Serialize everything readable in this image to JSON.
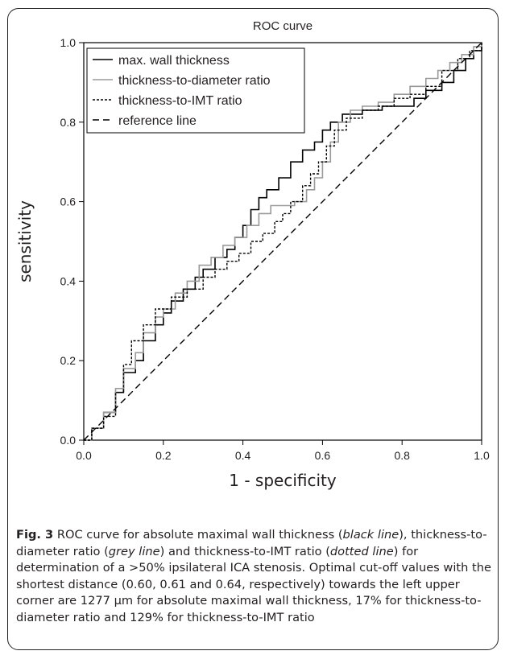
{
  "chart_data": {
    "type": "line",
    "title": "ROC curve",
    "xlabel": "1 - specificity",
    "ylabel": "sensitivity",
    "xlim": [
      0.0,
      1.0
    ],
    "ylim": [
      0.0,
      1.0
    ],
    "xticks": [
      "0.0",
      "0.2",
      "0.4",
      "0.6",
      "0.8",
      "1.0"
    ],
    "yticks": [
      "0.0",
      "0.2",
      "0.4",
      "0.6",
      "0.8",
      "1.0"
    ],
    "grid": false,
    "legend_position": "top-left",
    "series": [
      {
        "name": "max. wall thickness",
        "color": "#000000",
        "style": "solid",
        "points": [
          [
            0,
            0
          ],
          [
            0.02,
            0.03
          ],
          [
            0.05,
            0.07
          ],
          [
            0.08,
            0.12
          ],
          [
            0.1,
            0.17
          ],
          [
            0.13,
            0.2
          ],
          [
            0.15,
            0.25
          ],
          [
            0.18,
            0.29
          ],
          [
            0.2,
            0.32
          ],
          [
            0.22,
            0.35
          ],
          [
            0.25,
            0.38
          ],
          [
            0.28,
            0.41
          ],
          [
            0.3,
            0.43
          ],
          [
            0.33,
            0.46
          ],
          [
            0.36,
            0.48
          ],
          [
            0.38,
            0.51
          ],
          [
            0.4,
            0.54
          ],
          [
            0.42,
            0.58
          ],
          [
            0.44,
            0.61
          ],
          [
            0.46,
            0.63
          ],
          [
            0.49,
            0.66
          ],
          [
            0.52,
            0.7
          ],
          [
            0.55,
            0.73
          ],
          [
            0.58,
            0.75
          ],
          [
            0.6,
            0.78
          ],
          [
            0.62,
            0.8
          ],
          [
            0.65,
            0.82
          ],
          [
            0.7,
            0.83
          ],
          [
            0.75,
            0.84
          ],
          [
            0.8,
            0.84
          ],
          [
            0.83,
            0.86
          ],
          [
            0.86,
            0.88
          ],
          [
            0.9,
            0.9
          ],
          [
            0.93,
            0.93
          ],
          [
            0.96,
            0.96
          ],
          [
            0.98,
            0.98
          ],
          [
            1,
            1
          ]
        ]
      },
      {
        "name": "thickness-to-diameter ratio",
        "color": "#9a9a9a",
        "style": "solid",
        "points": [
          [
            0,
            0
          ],
          [
            0.02,
            0.03
          ],
          [
            0.05,
            0.07
          ],
          [
            0.08,
            0.13
          ],
          [
            0.1,
            0.18
          ],
          [
            0.13,
            0.22
          ],
          [
            0.15,
            0.27
          ],
          [
            0.18,
            0.31
          ],
          [
            0.2,
            0.33
          ],
          [
            0.23,
            0.37
          ],
          [
            0.26,
            0.4
          ],
          [
            0.29,
            0.44
          ],
          [
            0.32,
            0.46
          ],
          [
            0.35,
            0.49
          ],
          [
            0.38,
            0.51
          ],
          [
            0.41,
            0.54
          ],
          [
            0.44,
            0.57
          ],
          [
            0.47,
            0.59
          ],
          [
            0.5,
            0.59
          ],
          [
            0.53,
            0.6
          ],
          [
            0.56,
            0.63
          ],
          [
            0.58,
            0.66
          ],
          [
            0.6,
            0.7
          ],
          [
            0.62,
            0.75
          ],
          [
            0.64,
            0.8
          ],
          [
            0.67,
            0.83
          ],
          [
            0.7,
            0.84
          ],
          [
            0.74,
            0.85
          ],
          [
            0.78,
            0.87
          ],
          [
            0.82,
            0.89
          ],
          [
            0.86,
            0.91
          ],
          [
            0.89,
            0.93
          ],
          [
            0.92,
            0.95
          ],
          [
            0.95,
            0.97
          ],
          [
            0.98,
            0.99
          ],
          [
            1,
            1
          ]
        ]
      },
      {
        "name": "thickness-to-IMT ratio",
        "color": "#000000",
        "style": "dotted",
        "points": [
          [
            0,
            0
          ],
          [
            0.02,
            0.03
          ],
          [
            0.05,
            0.06
          ],
          [
            0.08,
            0.12
          ],
          [
            0.1,
            0.19
          ],
          [
            0.12,
            0.25
          ],
          [
            0.15,
            0.29
          ],
          [
            0.18,
            0.33
          ],
          [
            0.22,
            0.36
          ],
          [
            0.26,
            0.38
          ],
          [
            0.3,
            0.41
          ],
          [
            0.33,
            0.43
          ],
          [
            0.36,
            0.45
          ],
          [
            0.39,
            0.47
          ],
          [
            0.42,
            0.5
          ],
          [
            0.45,
            0.52
          ],
          [
            0.48,
            0.55
          ],
          [
            0.5,
            0.57
          ],
          [
            0.52,
            0.6
          ],
          [
            0.55,
            0.64
          ],
          [
            0.57,
            0.67
          ],
          [
            0.59,
            0.7
          ],
          [
            0.61,
            0.74
          ],
          [
            0.63,
            0.78
          ],
          [
            0.66,
            0.81
          ],
          [
            0.7,
            0.83
          ],
          [
            0.74,
            0.84
          ],
          [
            0.78,
            0.86
          ],
          [
            0.82,
            0.87
          ],
          [
            0.86,
            0.89
          ],
          [
            0.9,
            0.93
          ],
          [
            0.94,
            0.96
          ],
          [
            0.97,
            0.98
          ],
          [
            1,
            1
          ]
        ]
      },
      {
        "name": "reference line",
        "color": "#000000",
        "style": "dashed",
        "points": [
          [
            0,
            0
          ],
          [
            1,
            1
          ]
        ]
      }
    ]
  },
  "caption": {
    "label": "Fig. 3",
    "text_1": " ROC curve for absolute maximal wall thickness (",
    "italic_1": "black line",
    "text_2": "), thickness-to-diameter ratio (",
    "italic_2": "grey line",
    "text_3": ") and thickness-to-IMT ratio (",
    "italic_3": "dotted line",
    "text_4": ") for determination of a >50% ipsilateral ICA stenosis. Optimal cut-off values with the shortest distance (0.60, 0.61 and 0.64, respectively) towards the left upper corner are 1277 µm for absolute maximal wall thickness, 17% for thickness-to-diameter ratio and 129% for thickness-to-IMT ratio"
  }
}
